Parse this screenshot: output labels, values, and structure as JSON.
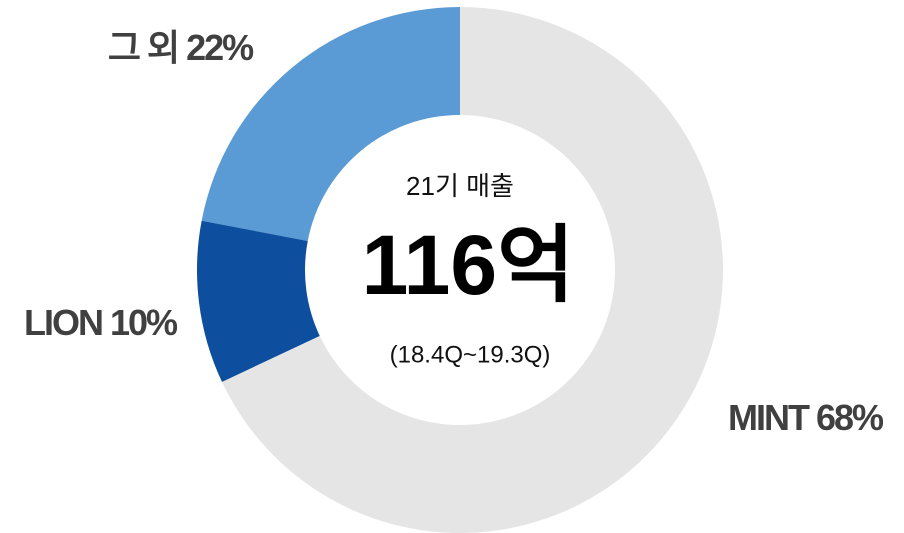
{
  "chart_data": {
    "type": "donut",
    "categories": [
      "MINT",
      "LION",
      "그 외"
    ],
    "values": [
      68,
      10,
      22
    ],
    "value_labels": [
      "68%",
      "10%",
      "22%"
    ],
    "colors": [
      "#e5e5e5",
      "#0d4f9e",
      "#5b9bd5"
    ],
    "annotations": [
      "21기 매출",
      "116억",
      "(18.4Q~19.3Q)"
    ]
  }
}
